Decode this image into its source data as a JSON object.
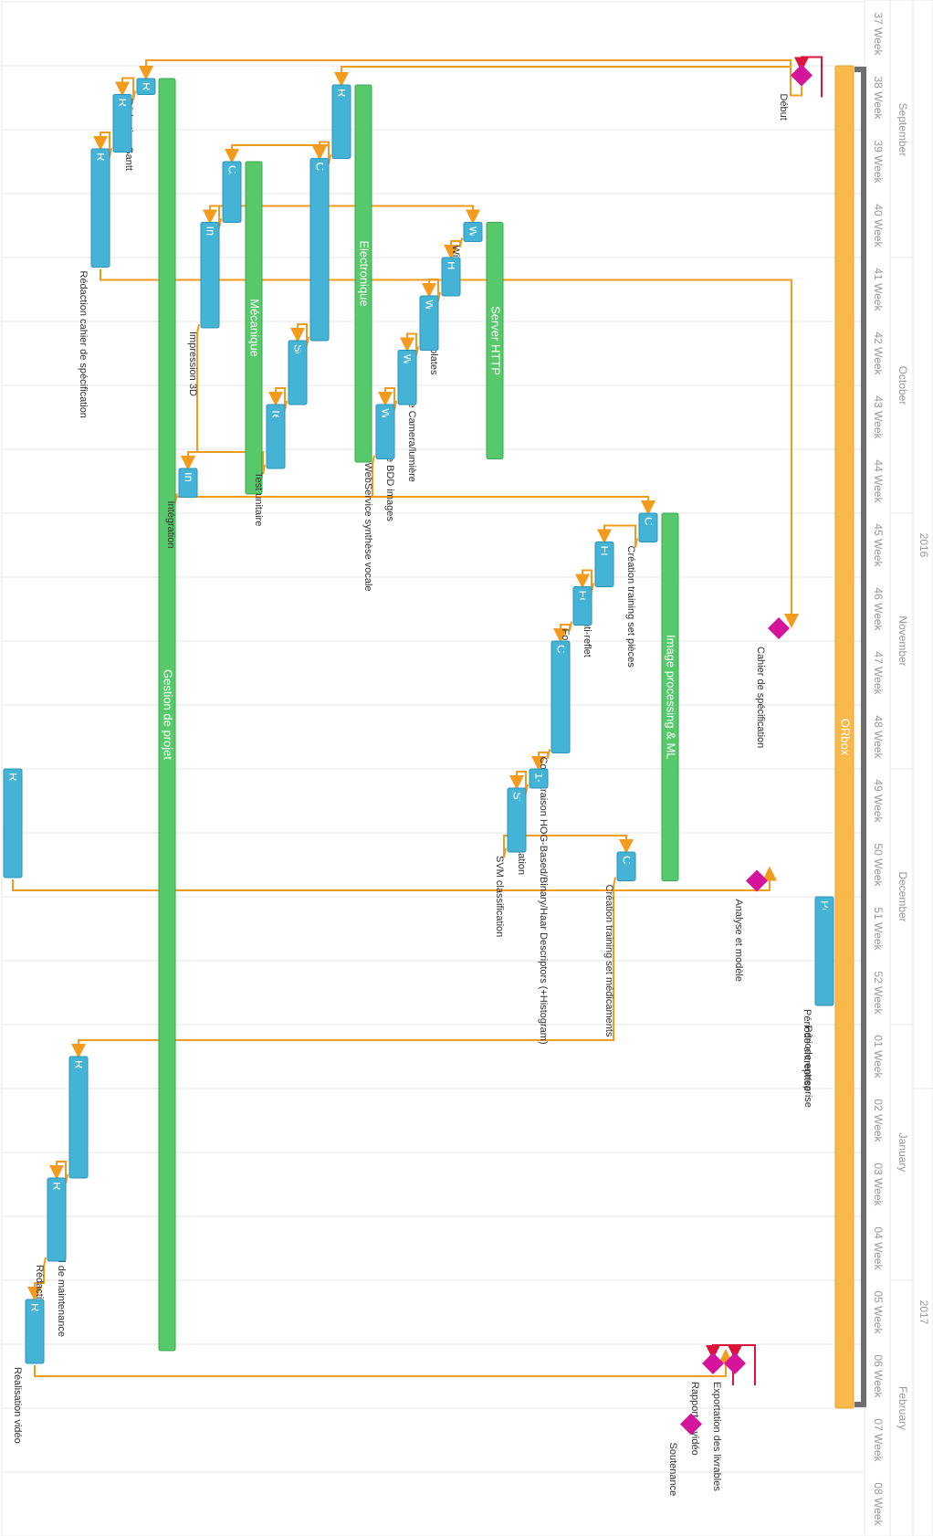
{
  "header": {
    "years": [
      {
        "label": "2016",
        "from": 0,
        "to": 17
      },
      {
        "label": "2017",
        "from": 17,
        "to": 24
      }
    ],
    "months": [
      {
        "label": "September",
        "from": 0,
        "to": 4
      },
      {
        "label": "October",
        "from": 4,
        "to": 8
      },
      {
        "label": "November",
        "from": 8,
        "to": 12
      },
      {
        "label": "December",
        "from": 12,
        "to": 16
      },
      {
        "label": "January",
        "from": 16,
        "to": 20
      },
      {
        "label": "February",
        "from": 20,
        "to": 24
      }
    ],
    "weeks": [
      "37 Week",
      "38 Week",
      "39 Week",
      "40 Week",
      "41 Week",
      "42 Week",
      "43 Week",
      "44 Week",
      "45 Week",
      "46 Week",
      "47 Week",
      "48 Week",
      "49 Week",
      "50 Week",
      "51 Week",
      "52 Week",
      "01 Week",
      "02 Week",
      "03 Week",
      "04 Week",
      "05 Week",
      "06 Week",
      "07 Week",
      "08 Week"
    ]
  },
  "colors": {
    "task": "#45b3d6",
    "task_border": "#2b93b8",
    "group": "#57c96b",
    "group_border": "#3aa84e",
    "project": "#f8b84a",
    "milestone": "#d4149b",
    "link": "#f49a1c",
    "milestone_link": "#dc143c",
    "bracket": "#6e6e6e",
    "grid": "#e4e4e4"
  },
  "items": [
    {
      "id": "orbox",
      "type": "project",
      "name": "ORbox",
      "label": "ORbox",
      "start": 1.0,
      "end": 22.0
    },
    {
      "id": "periode",
      "type": "task",
      "name": "Période entreprise",
      "label": "Période entreprise",
      "start": 14.0,
      "end": 15.7
    },
    {
      "id": "gestion",
      "type": "group",
      "name": "Gestion de projet",
      "label": "Gestion de projet",
      "start": 1.2,
      "end": 21.1
    },
    {
      "id": "redgantt",
      "type": "task",
      "name": "Rédaction Gantt",
      "label": "Réd",
      "start": 1.2,
      "end": 1.45
    },
    {
      "id": "reprise",
      "type": "task",
      "name": "Reprise de l'existant",
      "label": "Reprise de",
      "start": 1.45,
      "end": 2.35
    },
    {
      "id": "cahier",
      "type": "task",
      "name": "Rédaction cahier de spécification",
      "label": "Rédaction cahier de sp",
      "start": 2.3,
      "end": 4.15
    },
    {
      "id": "meca",
      "type": "group",
      "name": "Mécanique",
      "label": "Mécanique",
      "start": 2.5,
      "end": 7.7
    },
    {
      "id": "cao",
      "type": "task",
      "name": "CAO boitier",
      "label": "CAO boitier",
      "start": 2.5,
      "end": 3.45
    },
    {
      "id": "imp3d",
      "type": "task",
      "name": "Impression 3D",
      "label": "Impression 3D",
      "start": 3.45,
      "end": 5.1
    },
    {
      "id": "elec",
      "type": "group",
      "name": "Electronique",
      "label": "Electronique",
      "start": 1.3,
      "end": 7.2
    },
    {
      "id": "routage",
      "type": "task",
      "name": "Routage",
      "label": "Routage",
      "start": 1.3,
      "end": 2.45
    },
    {
      "id": "commande",
      "type": "task",
      "name": "Commande",
      "label": "Commande",
      "start": 2.45,
      "end": 5.3
    },
    {
      "id": "soudure",
      "type": "task",
      "name": "Soudure",
      "label": "Soudure",
      "start": 5.3,
      "end": 6.3
    },
    {
      "id": "testu",
      "type": "task",
      "name": "Test unitaire",
      "label": "Test unitaire",
      "start": 6.3,
      "end": 7.3
    },
    {
      "id": "server",
      "type": "group",
      "name": "Server HTTP",
      "label": "Server HTTP",
      "start": 3.45,
      "end": 7.15
    },
    {
      "id": "wireless",
      "type": "task",
      "name": "Wireless",
      "label": "Wir",
      "start": 3.45,
      "end": 3.75
    },
    {
      "id": "html",
      "type": "task",
      "name": "HTML Templates",
      "label": "HTML",
      "start": 4.0,
      "end": 4.6
    },
    {
      "id": "wscam",
      "type": "task",
      "name": "WebService Camera/lumière",
      "label": "WebServic",
      "start": 4.6,
      "end": 5.45
    },
    {
      "id": "wsbdd",
      "type": "task",
      "name": "WebService BDD images",
      "label": "WebServic",
      "start": 5.45,
      "end": 6.3
    },
    {
      "id": "wssynth",
      "type": "task",
      "name": "WebService synthèse vocale",
      "label": "WebServic",
      "start": 6.3,
      "end": 7.15
    },
    {
      "id": "integ",
      "type": "task",
      "name": "Intégration",
      "label": "Intég",
      "start": 7.3,
      "end": 7.75
    },
    {
      "id": "imgml",
      "type": "group",
      "name": "Image processing & ML",
      "label": "Image processing & ML",
      "start": 8.0,
      "end": 13.75
    },
    {
      "id": "creap",
      "type": "task",
      "name": "Création training set pièces",
      "label": "Créa",
      "start": 8.0,
      "end": 8.45
    },
    {
      "id": "filtre",
      "type": "task",
      "name": "Filtre anti-reflet",
      "label": "Filtre ant",
      "start": 8.45,
      "end": 9.15
    },
    {
      "id": "fonction",
      "type": "task",
      "name": "Fonction d'évaluation",
      "label": "Fonctio",
      "start": 9.15,
      "end": 9.75
    },
    {
      "id": "hog",
      "type": "task",
      "name": "Comparaison HOG-Based/Binary/Haar Descriptors (+Histogram)",
      "label": "Comparaison HOG-B",
      "start": 10.0,
      "end": 11.75
    },
    {
      "id": "knn",
      "type": "task",
      "name": "1-NN classification",
      "label": "1-N",
      "start": 12.0,
      "end": 12.3
    },
    {
      "id": "svm",
      "type": "task",
      "name": "SVM classification",
      "label": "SVM classifi",
      "start": 12.3,
      "end": 13.3
    },
    {
      "id": "creamed",
      "type": "task",
      "name": "Création training set médicaments",
      "label": "Créa",
      "start": 13.3,
      "end": 13.75
    },
    {
      "id": "redanalyse",
      "type": "task",
      "name": "Rédaction analyse et modèle",
      "label": "Rédaction analyse et",
      "start": 12.0,
      "end": 13.7
    },
    {
      "id": "manuel",
      "type": "task",
      "name": "Rédaction manuel de maintenance",
      "label": "Rédaction manuel de m",
      "start": 16.5,
      "end": 18.4
    },
    {
      "id": "rapport",
      "type": "task",
      "name": "Rédaction rapport",
      "label": "Rédaction rapport",
      "start": 18.4,
      "end": 19.7
    },
    {
      "id": "video",
      "type": "task",
      "name": "Réalisation vidéo",
      "label": "Réalisation v",
      "start": 20.3,
      "end": 21.3
    },
    {
      "id": "m_debut",
      "type": "milestone",
      "name": "Début",
      "label": "Début",
      "start": 1.15
    },
    {
      "id": "m_cahier",
      "type": "milestone",
      "name": "Cahier de spécification",
      "label": "Cahier de spécification",
      "start": 9.8
    },
    {
      "id": "m_analyse",
      "type": "milestone",
      "name": "Analyse et modèle",
      "label": "Analyse et modèle",
      "start": 13.75
    },
    {
      "id": "m_rapport",
      "type": "milestone",
      "name": "Rapport et vidéo",
      "label": "Rapport et vidéo",
      "start": 21.3
    },
    {
      "id": "m_livrables",
      "type": "milestone",
      "name": "Exportation des livrables",
      "label": "Exportation des livrables",
      "start": 21.3
    },
    {
      "id": "m_soutenance",
      "type": "milestone",
      "name": "Soutenance",
      "label": "Soutenance",
      "start": 22.25
    }
  ],
  "links": [
    [
      "redgantt",
      "reprise"
    ],
    [
      "reprise",
      "cahier"
    ],
    [
      "cahier",
      "m_cahier"
    ],
    [
      "routage",
      "commande"
    ],
    [
      "routage",
      "cao"
    ],
    [
      "commande",
      "soudure"
    ],
    [
      "soudure",
      "testu"
    ],
    [
      "cao",
      "imp3d"
    ],
    [
      "cao",
      "wireless"
    ],
    [
      "imp3d",
      "integ"
    ],
    [
      "testu",
      "integ"
    ],
    [
      "wireless",
      "html"
    ],
    [
      "html",
      "wscam"
    ],
    [
      "wscam",
      "wsbdd"
    ],
    [
      "wsbdd",
      "wssynth"
    ],
    [
      "wssynth",
      "creap"
    ],
    [
      "integ",
      "creap"
    ],
    [
      "creap",
      "filtre"
    ],
    [
      "filtre",
      "fonction"
    ],
    [
      "fonction",
      "hog"
    ],
    [
      "hog",
      "knn"
    ],
    [
      "knn",
      "svm"
    ],
    [
      "svm",
      "creamed"
    ],
    [
      "creamed",
      "manuel"
    ],
    [
      "manuel",
      "rapport"
    ],
    [
      "rapport",
      "video"
    ],
    [
      "video",
      "m_rapport"
    ],
    [
      "redanalyse",
      "m_analyse"
    ],
    [
      "m_debut",
      "redgantt"
    ],
    [
      "m_debut",
      "routage"
    ]
  ],
  "milestone_links": [
    [
      "m_debut",
      "m_debut"
    ],
    [
      "m_rapport",
      "m_rapport"
    ],
    [
      "m_livrables",
      "m_livrables"
    ]
  ]
}
